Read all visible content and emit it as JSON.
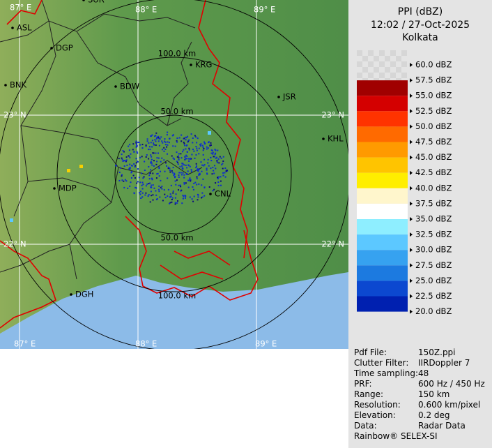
{
  "map": {
    "grid_labels": [
      "87° E",
      "88° E",
      "89° E",
      "23° N",
      "23° N",
      "22° N",
      "22° N",
      "87° E",
      "88° E",
      "89° E"
    ],
    "range_labels": [
      "100.0 km",
      "50.0 km",
      "50.0 km",
      "100.0 km"
    ],
    "places": [
      "SUR",
      "ASL",
      "DGP",
      "BNK",
      "BDW",
      "KRG",
      "JSR",
      "KHL",
      "MDP",
      "CNL",
      "DGH"
    ]
  },
  "panel": {
    "title": "PPI (dBZ)",
    "time": "12:02 / 27-Oct-2025",
    "station": "Kolkata",
    "scale_labels": [
      "60.0 dBZ",
      "57.5 dBZ",
      "55.0 dBZ",
      "52.5 dBZ",
      "50.0 dBZ",
      "47.5 dBZ",
      "45.0 dBZ",
      "42.5 dBZ",
      "40.0 dBZ",
      "37.5 dBZ",
      "35.0 dBZ",
      "32.5 dBZ",
      "30.0 dBZ",
      "27.5 dBZ",
      "25.0 dBZ",
      "22.5 dBZ",
      "20.0 dBZ"
    ],
    "scale_colors": [
      "#a00000",
      "#d40000",
      "#ff3300",
      "#ff6a00",
      "#ff9a00",
      "#ffc400",
      "#ffee00",
      "#fff6cc",
      "#ffffff",
      "#8eeeff",
      "#5cc8ff",
      "#36a2f0",
      "#1c7ae0",
      "#0c48d0",
      "#0020b0"
    ]
  },
  "info": {
    "rows": [
      [
        "Pdf File:",
        "150Z.ppi"
      ],
      [
        "Clutter Filter:",
        "IIRDoppler 7"
      ],
      [
        "Time sampling:",
        "48"
      ],
      [
        "PRF:",
        "600 Hz / 450 Hz"
      ],
      [
        "Range:",
        "150 km"
      ],
      [
        "Resolution:",
        "0.600 km/pixel"
      ],
      [
        "Elevation:",
        "0.2 deg"
      ],
      [
        "Data:",
        "Radar Data"
      ]
    ],
    "footer": "Rainbow® SELEX-SI"
  }
}
